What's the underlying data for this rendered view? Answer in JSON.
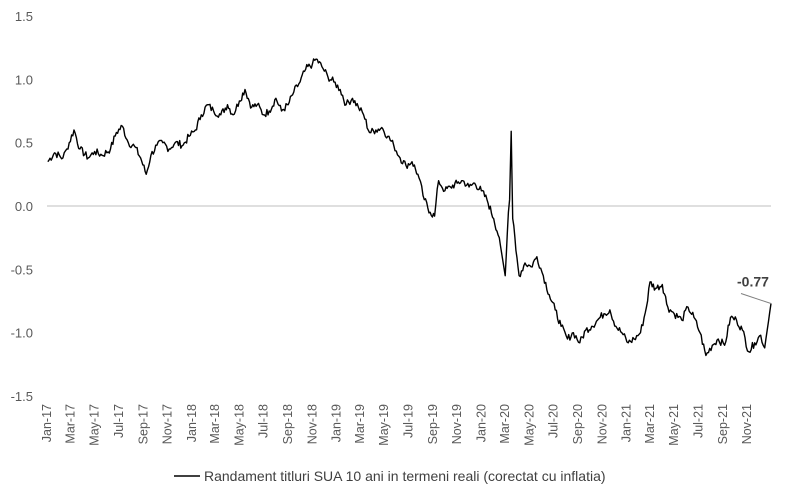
{
  "chart_data": {
    "type": "line",
    "title": "",
    "xlabel": "",
    "ylabel": "",
    "ylim": [
      -1.5,
      1.5
    ],
    "y_ticks": [
      "1.5",
      "1.0",
      "0.5",
      "0.0",
      "-0.5",
      "-1.0",
      "-1.5"
    ],
    "x_ticks": [
      "Jan-17",
      "Mar-17",
      "May-17",
      "Jul-17",
      "Sep-17",
      "Nov-17",
      "Jan-18",
      "Mar-18",
      "May-18",
      "Jul-18",
      "Sep-18",
      "Nov-18",
      "Jan-19",
      "Mar-19",
      "May-19",
      "Jul-19",
      "Sep-19",
      "Nov-19",
      "Jan-20",
      "Mar-20",
      "May-20",
      "Jul-20",
      "Sep-20",
      "Nov-20",
      "Jan-21",
      "Mar-21",
      "May-21",
      "Jul-21",
      "Sep-21",
      "Nov-21"
    ],
    "grid": false,
    "zero_line": true,
    "legend_position": "bottom",
    "series": [
      {
        "name": "Randament titluri SUA 10 ani in termeni reali (corectat cu inflatia)",
        "color": "#000000",
        "points": [
          [
            "2017-01-03",
            0.35
          ],
          [
            "2017-01-20",
            0.42
          ],
          [
            "2017-02-10",
            0.38
          ],
          [
            "2017-02-20",
            0.45
          ],
          [
            "2017-03-10",
            0.6
          ],
          [
            "2017-03-25",
            0.45
          ],
          [
            "2017-04-15",
            0.38
          ],
          [
            "2017-05-01",
            0.43
          ],
          [
            "2017-05-20",
            0.4
          ],
          [
            "2017-06-10",
            0.45
          ],
          [
            "2017-06-25",
            0.58
          ],
          [
            "2017-07-10",
            0.63
          ],
          [
            "2017-07-25",
            0.5
          ],
          [
            "2017-08-10",
            0.47
          ],
          [
            "2017-08-25",
            0.38
          ],
          [
            "2017-09-08",
            0.25
          ],
          [
            "2017-09-20",
            0.4
          ],
          [
            "2017-10-05",
            0.48
          ],
          [
            "2017-10-20",
            0.5
          ],
          [
            "2017-11-05",
            0.45
          ],
          [
            "2017-11-20",
            0.5
          ],
          [
            "2017-12-10",
            0.48
          ],
          [
            "2017-12-25",
            0.55
          ],
          [
            "2018-01-10",
            0.6
          ],
          [
            "2018-01-25",
            0.72
          ],
          [
            "2018-02-10",
            0.8
          ],
          [
            "2018-02-25",
            0.75
          ],
          [
            "2018-03-15",
            0.72
          ],
          [
            "2018-04-01",
            0.8
          ],
          [
            "2018-04-15",
            0.72
          ],
          [
            "2018-05-01",
            0.83
          ],
          [
            "2018-05-15",
            0.92
          ],
          [
            "2018-06-01",
            0.78
          ],
          [
            "2018-06-15",
            0.8
          ],
          [
            "2018-07-01",
            0.72
          ],
          [
            "2018-07-15",
            0.75
          ],
          [
            "2018-08-01",
            0.85
          ],
          [
            "2018-08-15",
            0.75
          ],
          [
            "2018-09-01",
            0.8
          ],
          [
            "2018-09-15",
            0.9
          ],
          [
            "2018-10-01",
            0.98
          ],
          [
            "2018-10-15",
            1.08
          ],
          [
            "2018-11-01",
            1.12
          ],
          [
            "2018-11-10",
            1.16
          ],
          [
            "2018-11-25",
            1.1
          ],
          [
            "2018-12-10",
            1.02
          ],
          [
            "2018-12-25",
            0.98
          ],
          [
            "2019-01-10",
            0.92
          ],
          [
            "2019-01-25",
            0.8
          ],
          [
            "2019-02-10",
            0.85
          ],
          [
            "2019-02-25",
            0.78
          ],
          [
            "2019-03-10",
            0.72
          ],
          [
            "2019-03-25",
            0.58
          ],
          [
            "2019-04-10",
            0.6
          ],
          [
            "2019-04-25",
            0.62
          ],
          [
            "2019-05-10",
            0.55
          ],
          [
            "2019-05-25",
            0.48
          ],
          [
            "2019-06-10",
            0.38
          ],
          [
            "2019-06-25",
            0.32
          ],
          [
            "2019-07-10",
            0.35
          ],
          [
            "2019-07-25",
            0.25
          ],
          [
            "2019-08-10",
            0.05
          ],
          [
            "2019-08-25",
            -0.05
          ],
          [
            "2019-09-05",
            -0.08
          ],
          [
            "2019-09-15",
            0.2
          ],
          [
            "2019-10-01",
            0.12
          ],
          [
            "2019-10-15",
            0.15
          ],
          [
            "2019-11-01",
            0.18
          ],
          [
            "2019-11-15",
            0.2
          ],
          [
            "2019-12-01",
            0.15
          ],
          [
            "2019-12-15",
            0.18
          ],
          [
            "2020-01-01",
            0.12
          ],
          [
            "2020-01-15",
            0.05
          ],
          [
            "2020-02-01",
            -0.1
          ],
          [
            "2020-02-15",
            -0.25
          ],
          [
            "2020-03-01",
            -0.55
          ],
          [
            "2020-03-09",
            -0.05
          ],
          [
            "2020-03-12",
            0.05
          ],
          [
            "2020-03-16",
            0.59
          ],
          [
            "2020-03-20",
            -0.1
          ],
          [
            "2020-03-28",
            -0.35
          ],
          [
            "2020-04-05",
            -0.55
          ],
          [
            "2020-04-20",
            -0.45
          ],
          [
            "2020-05-05",
            -0.48
          ],
          [
            "2020-05-20",
            -0.4
          ],
          [
            "2020-06-05",
            -0.55
          ],
          [
            "2020-06-20",
            -0.7
          ],
          [
            "2020-07-05",
            -0.82
          ],
          [
            "2020-07-20",
            -0.95
          ],
          [
            "2020-08-05",
            -1.05
          ],
          [
            "2020-08-20",
            -1.0
          ],
          [
            "2020-09-05",
            -1.08
          ],
          [
            "2020-09-20",
            -0.98
          ],
          [
            "2020-10-05",
            -0.95
          ],
          [
            "2020-10-20",
            -0.9
          ],
          [
            "2020-11-05",
            -0.85
          ],
          [
            "2020-11-20",
            -0.82
          ],
          [
            "2020-12-05",
            -0.95
          ],
          [
            "2020-12-20",
            -1.0
          ],
          [
            "2021-01-05",
            -1.08
          ],
          [
            "2021-01-20",
            -1.05
          ],
          [
            "2021-02-05",
            -1.0
          ],
          [
            "2021-02-20",
            -0.8
          ],
          [
            "2021-03-01",
            -0.6
          ],
          [
            "2021-03-15",
            -0.65
          ],
          [
            "2021-04-01",
            -0.62
          ],
          [
            "2021-04-15",
            -0.8
          ],
          [
            "2021-05-01",
            -0.85
          ],
          [
            "2021-05-20",
            -0.9
          ],
          [
            "2021-06-05",
            -0.8
          ],
          [
            "2021-06-20",
            -0.88
          ],
          [
            "2021-07-05",
            -1.0
          ],
          [
            "2021-07-20",
            -1.18
          ],
          [
            "2021-08-05",
            -1.1
          ],
          [
            "2021-08-20",
            -1.05
          ],
          [
            "2021-09-05",
            -1.1
          ],
          [
            "2021-09-20",
            -0.88
          ],
          [
            "2021-10-05",
            -0.9
          ],
          [
            "2021-10-20",
            -0.98
          ],
          [
            "2021-11-05",
            -1.15
          ],
          [
            "2021-11-20",
            -1.08
          ],
          [
            "2021-12-05",
            -1.02
          ],
          [
            "2021-12-15",
            -1.12
          ],
          [
            "2021-12-31",
            -0.77
          ]
        ]
      }
    ],
    "annotations": [
      {
        "text": "-0.77",
        "x": "2021-12-31",
        "y": -0.77
      }
    ]
  }
}
